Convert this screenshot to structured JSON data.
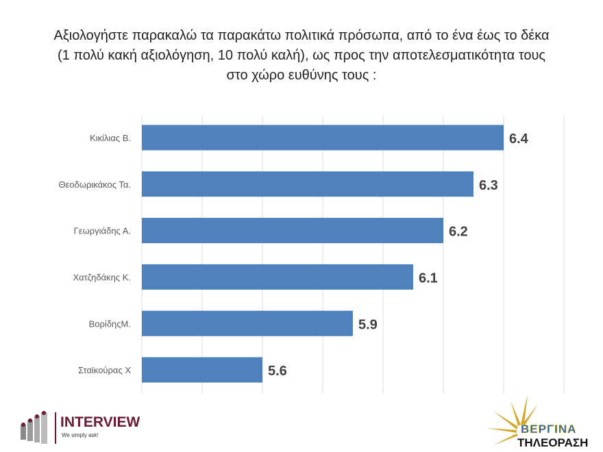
{
  "title_lines": [
    "Αξιολογήστε παρακαλώ τα παρακάτω πολιτικά πρόσωπα, από το ένα έως το δέκα",
    "(1 πολύ κακή αξιολόγηση, 10 πολύ καλή), ως προς την αποτελεσματικότητα τους",
    "στο χώρο ευθύνης τους :"
  ],
  "chart_data": {
    "type": "bar",
    "orientation": "horizontal",
    "categories": [
      "Κικίλιας Β.",
      "Θεοδωρικάκος Τα.",
      "Γεωργιάδης Α.",
      "Χατζηδάκης Κ.",
      "ΒορίδηςΜ.",
      "Σταϊκούρας Χ"
    ],
    "values": [
      6.4,
      6.3,
      6.2,
      6.1,
      5.9,
      5.6
    ],
    "xlim": [
      5.2,
      6.6
    ],
    "grid": true,
    "bar_color": "#4f81bd",
    "title": "Αξιολογήστε παρακαλώ τα παρακάτω πολιτικά πρόσωπα, από το ένα έως το δέκα (1 πολύ κακή αξιολόγηση, 10 πολύ καλή), ως προς την αποτελεσματικότητα τους στο χώρο ευθύνης τους :"
  },
  "logos": {
    "left": {
      "name": "INTERVIEW",
      "tagline": "We simply ask!"
    },
    "right": {
      "line1": "ΒΕΡΓΙΝΑ",
      "line2": "ΤΗΛΕΟΡΑΣΗ"
    }
  }
}
